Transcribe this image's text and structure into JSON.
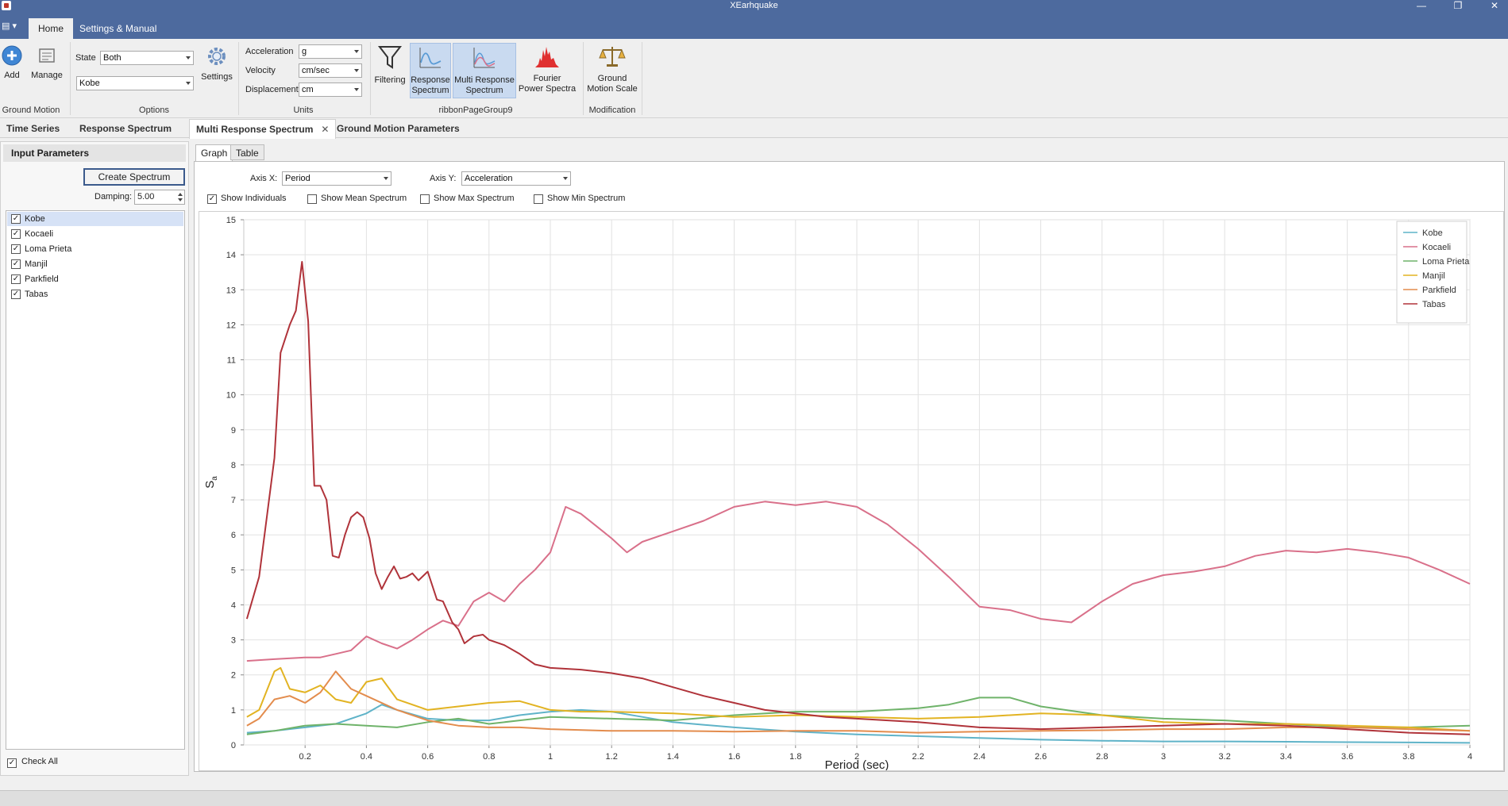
{
  "window": {
    "title": "XEarhquake"
  },
  "ribbon_tabs": [
    "Home",
    "Settings & Manual"
  ],
  "ribbon": {
    "groups": {
      "ground_motion": "Ground Motion",
      "options": "Options",
      "units": "Units",
      "ribbon_page_group": "ribbonPageGroup9",
      "modification": "Modification"
    },
    "buttons": {
      "add": "Add",
      "manage": "Manage",
      "settings": "Settings",
      "filtering": "Filtering",
      "response_spectrum_1": "Response",
      "response_spectrum_2": "Spectrum",
      "multi_response_1": "Multi Response",
      "multi_response_2": "Spectrum",
      "fourier_1": "Fourier",
      "fourier_2": "Power Spectra",
      "gm_scale_1": "Ground",
      "gm_scale_2": "Motion Scale"
    },
    "state_label": "State",
    "state_value": "Both",
    "record_value": "Kobe",
    "acceleration_label": "Acceleration",
    "acceleration_value": "g",
    "velocity_label": "Velocity",
    "velocity_value": "cm/sec",
    "displacement_label": "Displacement",
    "displacement_value": "cm"
  },
  "doc_tabs": [
    "Time Series",
    "Response Spectrum",
    "Multi Response Spectrum",
    "Ground Motion Parameters"
  ],
  "doc_tab_close": "✕",
  "left_panel": {
    "header": "Input Parameters",
    "create_button": "Create Spectrum",
    "damping_label": "Damping:",
    "damping_value": "5.00",
    "items": [
      "Kobe",
      "Kocaeli",
      "Loma Prieta",
      "Manjil",
      "Parkfield",
      "Tabas"
    ],
    "check_all": "Check All"
  },
  "content": {
    "subtabs": [
      "Graph",
      "Table"
    ],
    "axis_x_label": "Axis X:",
    "axis_x_value": "Period",
    "axis_y_label": "Axis Y:",
    "axis_y_value": "Acceleration",
    "options": {
      "show_individuals": "Show Individuals",
      "show_mean": "Show Mean Spectrum",
      "show_max": "Show Max Spectrum",
      "show_min": "Show Min Spectrum"
    }
  },
  "chart_data": {
    "type": "line",
    "xlabel": "Period (sec)",
    "ylabel": "Sa",
    "xlim": [
      0,
      4
    ],
    "ylim": [
      0,
      15
    ],
    "x_ticks": [
      "0.2",
      "0.4",
      "0.6",
      "0.8",
      "1",
      "1.2",
      "1.4",
      "1.6",
      "1.8",
      "2",
      "2.2",
      "2.4",
      "2.6",
      "2.8",
      "3",
      "3.2",
      "3.4",
      "3.6",
      "3.8",
      "4"
    ],
    "y_ticks": [
      "0",
      "1",
      "2",
      "3",
      "4",
      "5",
      "6",
      "7",
      "8",
      "9",
      "10",
      "11",
      "12",
      "13",
      "14",
      "15"
    ],
    "legend_position": "top-right",
    "grid": true,
    "series": [
      {
        "name": "Kobe",
        "color": "#5fb3c8",
        "points": [
          [
            0.01,
            0.35
          ],
          [
            0.1,
            0.4
          ],
          [
            0.2,
            0.5
          ],
          [
            0.3,
            0.6
          ],
          [
            0.4,
            0.9
          ],
          [
            0.45,
            1.15
          ],
          [
            0.5,
            1.0
          ],
          [
            0.6,
            0.75
          ],
          [
            0.7,
            0.7
          ],
          [
            0.8,
            0.7
          ],
          [
            0.9,
            0.85
          ],
          [
            1.0,
            0.95
          ],
          [
            1.1,
            1.0
          ],
          [
            1.2,
            0.95
          ],
          [
            1.3,
            0.8
          ],
          [
            1.4,
            0.65
          ],
          [
            1.6,
            0.5
          ],
          [
            1.8,
            0.38
          ],
          [
            2.0,
            0.3
          ],
          [
            2.2,
            0.25
          ],
          [
            2.4,
            0.2
          ],
          [
            2.6,
            0.15
          ],
          [
            2.8,
            0.12
          ],
          [
            3.0,
            0.1
          ],
          [
            3.2,
            0.1
          ],
          [
            3.4,
            0.09
          ],
          [
            3.6,
            0.08
          ],
          [
            3.8,
            0.07
          ],
          [
            4.0,
            0.06
          ]
        ]
      },
      {
        "name": "Kocaeli",
        "color": "#d9708a",
        "points": [
          [
            0.01,
            2.4
          ],
          [
            0.1,
            2.45
          ],
          [
            0.2,
            2.5
          ],
          [
            0.25,
            2.5
          ],
          [
            0.3,
            2.6
          ],
          [
            0.35,
            2.7
          ],
          [
            0.4,
            3.1
          ],
          [
            0.45,
            2.9
          ],
          [
            0.5,
            2.75
          ],
          [
            0.55,
            3.0
          ],
          [
            0.6,
            3.3
          ],
          [
            0.65,
            3.55
          ],
          [
            0.7,
            3.4
          ],
          [
            0.75,
            4.1
          ],
          [
            0.8,
            4.35
          ],
          [
            0.85,
            4.1
          ],
          [
            0.9,
            4.6
          ],
          [
            0.95,
            5.0
          ],
          [
            1.0,
            5.5
          ],
          [
            1.05,
            6.8
          ],
          [
            1.1,
            6.6
          ],
          [
            1.2,
            5.9
          ],
          [
            1.25,
            5.5
          ],
          [
            1.3,
            5.8
          ],
          [
            1.4,
            6.1
          ],
          [
            1.5,
            6.4
          ],
          [
            1.6,
            6.8
          ],
          [
            1.7,
            6.95
          ],
          [
            1.8,
            6.85
          ],
          [
            1.9,
            6.95
          ],
          [
            2.0,
            6.8
          ],
          [
            2.1,
            6.3
          ],
          [
            2.2,
            5.6
          ],
          [
            2.3,
            4.8
          ],
          [
            2.4,
            3.95
          ],
          [
            2.5,
            3.85
          ],
          [
            2.6,
            3.6
          ],
          [
            2.7,
            3.5
          ],
          [
            2.8,
            4.1
          ],
          [
            2.9,
            4.6
          ],
          [
            3.0,
            4.85
          ],
          [
            3.1,
            4.95
          ],
          [
            3.2,
            5.1
          ],
          [
            3.3,
            5.4
          ],
          [
            3.4,
            5.55
          ],
          [
            3.5,
            5.5
          ],
          [
            3.6,
            5.6
          ],
          [
            3.7,
            5.5
          ],
          [
            3.8,
            5.35
          ],
          [
            3.9,
            5.0
          ],
          [
            4.0,
            4.6
          ]
        ]
      },
      {
        "name": "Loma Prieta",
        "color": "#6fb36a",
        "points": [
          [
            0.01,
            0.3
          ],
          [
            0.1,
            0.4
          ],
          [
            0.2,
            0.55
          ],
          [
            0.3,
            0.6
          ],
          [
            0.4,
            0.55
          ],
          [
            0.5,
            0.5
          ],
          [
            0.6,
            0.65
          ],
          [
            0.7,
            0.75
          ],
          [
            0.8,
            0.6
          ],
          [
            0.9,
            0.7
          ],
          [
            1.0,
            0.8
          ],
          [
            1.2,
            0.75
          ],
          [
            1.4,
            0.7
          ],
          [
            1.6,
            0.85
          ],
          [
            1.8,
            0.95
          ],
          [
            2.0,
            0.95
          ],
          [
            2.2,
            1.05
          ],
          [
            2.3,
            1.15
          ],
          [
            2.4,
            1.35
          ],
          [
            2.5,
            1.35
          ],
          [
            2.6,
            1.1
          ],
          [
            2.8,
            0.85
          ],
          [
            3.0,
            0.75
          ],
          [
            3.2,
            0.7
          ],
          [
            3.4,
            0.6
          ],
          [
            3.6,
            0.5
          ],
          [
            3.8,
            0.5
          ],
          [
            4.0,
            0.55
          ]
        ]
      },
      {
        "name": "Manjil",
        "color": "#e2b322",
        "points": [
          [
            0.01,
            0.8
          ],
          [
            0.05,
            1.0
          ],
          [
            0.1,
            2.1
          ],
          [
            0.12,
            2.2
          ],
          [
            0.15,
            1.6
          ],
          [
            0.2,
            1.5
          ],
          [
            0.25,
            1.7
          ],
          [
            0.3,
            1.3
          ],
          [
            0.35,
            1.2
          ],
          [
            0.4,
            1.8
          ],
          [
            0.45,
            1.9
          ],
          [
            0.5,
            1.3
          ],
          [
            0.6,
            1.0
          ],
          [
            0.7,
            1.1
          ],
          [
            0.8,
            1.2
          ],
          [
            0.9,
            1.25
          ],
          [
            1.0,
            1.0
          ],
          [
            1.1,
            0.95
          ],
          [
            1.2,
            0.95
          ],
          [
            1.4,
            0.9
          ],
          [
            1.6,
            0.8
          ],
          [
            1.8,
            0.85
          ],
          [
            2.0,
            0.8
          ],
          [
            2.2,
            0.75
          ],
          [
            2.4,
            0.8
          ],
          [
            2.6,
            0.9
          ],
          [
            2.8,
            0.85
          ],
          [
            3.0,
            0.65
          ],
          [
            3.2,
            0.6
          ],
          [
            3.4,
            0.6
          ],
          [
            3.6,
            0.55
          ],
          [
            3.8,
            0.5
          ],
          [
            4.0,
            0.4
          ]
        ]
      },
      {
        "name": "Parkfield",
        "color": "#e38c4d",
        "points": [
          [
            0.01,
            0.55
          ],
          [
            0.05,
            0.75
          ],
          [
            0.1,
            1.3
          ],
          [
            0.15,
            1.4
          ],
          [
            0.2,
            1.2
          ],
          [
            0.25,
            1.5
          ],
          [
            0.3,
            2.1
          ],
          [
            0.35,
            1.6
          ],
          [
            0.4,
            1.4
          ],
          [
            0.5,
            1.0
          ],
          [
            0.6,
            0.7
          ],
          [
            0.7,
            0.55
          ],
          [
            0.8,
            0.5
          ],
          [
            0.9,
            0.5
          ],
          [
            1.0,
            0.45
          ],
          [
            1.2,
            0.4
          ],
          [
            1.4,
            0.4
          ],
          [
            1.6,
            0.38
          ],
          [
            1.8,
            0.4
          ],
          [
            2.0,
            0.4
          ],
          [
            2.2,
            0.35
          ],
          [
            2.4,
            0.38
          ],
          [
            2.6,
            0.4
          ],
          [
            2.8,
            0.42
          ],
          [
            3.0,
            0.45
          ],
          [
            3.2,
            0.45
          ],
          [
            3.4,
            0.5
          ],
          [
            3.6,
            0.5
          ],
          [
            3.8,
            0.45
          ],
          [
            4.0,
            0.4
          ]
        ]
      },
      {
        "name": "Tabas",
        "color": "#b0333a",
        "points": [
          [
            0.01,
            3.6
          ],
          [
            0.05,
            4.8
          ],
          [
            0.1,
            8.2
          ],
          [
            0.12,
            11.2
          ],
          [
            0.15,
            12.0
          ],
          [
            0.17,
            12.4
          ],
          [
            0.19,
            13.8
          ],
          [
            0.21,
            12.1
          ],
          [
            0.23,
            7.4
          ],
          [
            0.25,
            7.4
          ],
          [
            0.27,
            7.0
          ],
          [
            0.29,
            5.4
          ],
          [
            0.31,
            5.35
          ],
          [
            0.33,
            6.0
          ],
          [
            0.35,
            6.5
          ],
          [
            0.37,
            6.65
          ],
          [
            0.39,
            6.5
          ],
          [
            0.41,
            5.9
          ],
          [
            0.43,
            4.9
          ],
          [
            0.45,
            4.45
          ],
          [
            0.47,
            4.8
          ],
          [
            0.49,
            5.1
          ],
          [
            0.51,
            4.75
          ],
          [
            0.53,
            4.8
          ],
          [
            0.55,
            4.9
          ],
          [
            0.57,
            4.7
          ],
          [
            0.6,
            4.95
          ],
          [
            0.63,
            4.15
          ],
          [
            0.65,
            4.1
          ],
          [
            0.68,
            3.5
          ],
          [
            0.7,
            3.3
          ],
          [
            0.72,
            2.9
          ],
          [
            0.75,
            3.1
          ],
          [
            0.78,
            3.15
          ],
          [
            0.8,
            3.0
          ],
          [
            0.85,
            2.85
          ],
          [
            0.9,
            2.6
          ],
          [
            0.95,
            2.3
          ],
          [
            1.0,
            2.2
          ],
          [
            1.1,
            2.15
          ],
          [
            1.2,
            2.05
          ],
          [
            1.3,
            1.9
          ],
          [
            1.4,
            1.65
          ],
          [
            1.5,
            1.4
          ],
          [
            1.6,
            1.2
          ],
          [
            1.7,
            1.0
          ],
          [
            1.8,
            0.9
          ],
          [
            1.9,
            0.8
          ],
          [
            2.0,
            0.75
          ],
          [
            2.2,
            0.65
          ],
          [
            2.4,
            0.5
          ],
          [
            2.6,
            0.45
          ],
          [
            2.8,
            0.5
          ],
          [
            3.0,
            0.55
          ],
          [
            3.2,
            0.6
          ],
          [
            3.4,
            0.55
          ],
          [
            3.6,
            0.45
          ],
          [
            3.8,
            0.35
          ],
          [
            4.0,
            0.3
          ]
        ]
      }
    ]
  },
  "icons": {
    "add": "plus-circle-icon",
    "manage": "manage-icon",
    "settings": "gear-icon",
    "filtering": "funnel-icon",
    "response": "line-chart-icon",
    "multi_response": "multi-line-chart-icon",
    "fourier": "spectrum-icon",
    "scale": "balance-scale-icon"
  }
}
